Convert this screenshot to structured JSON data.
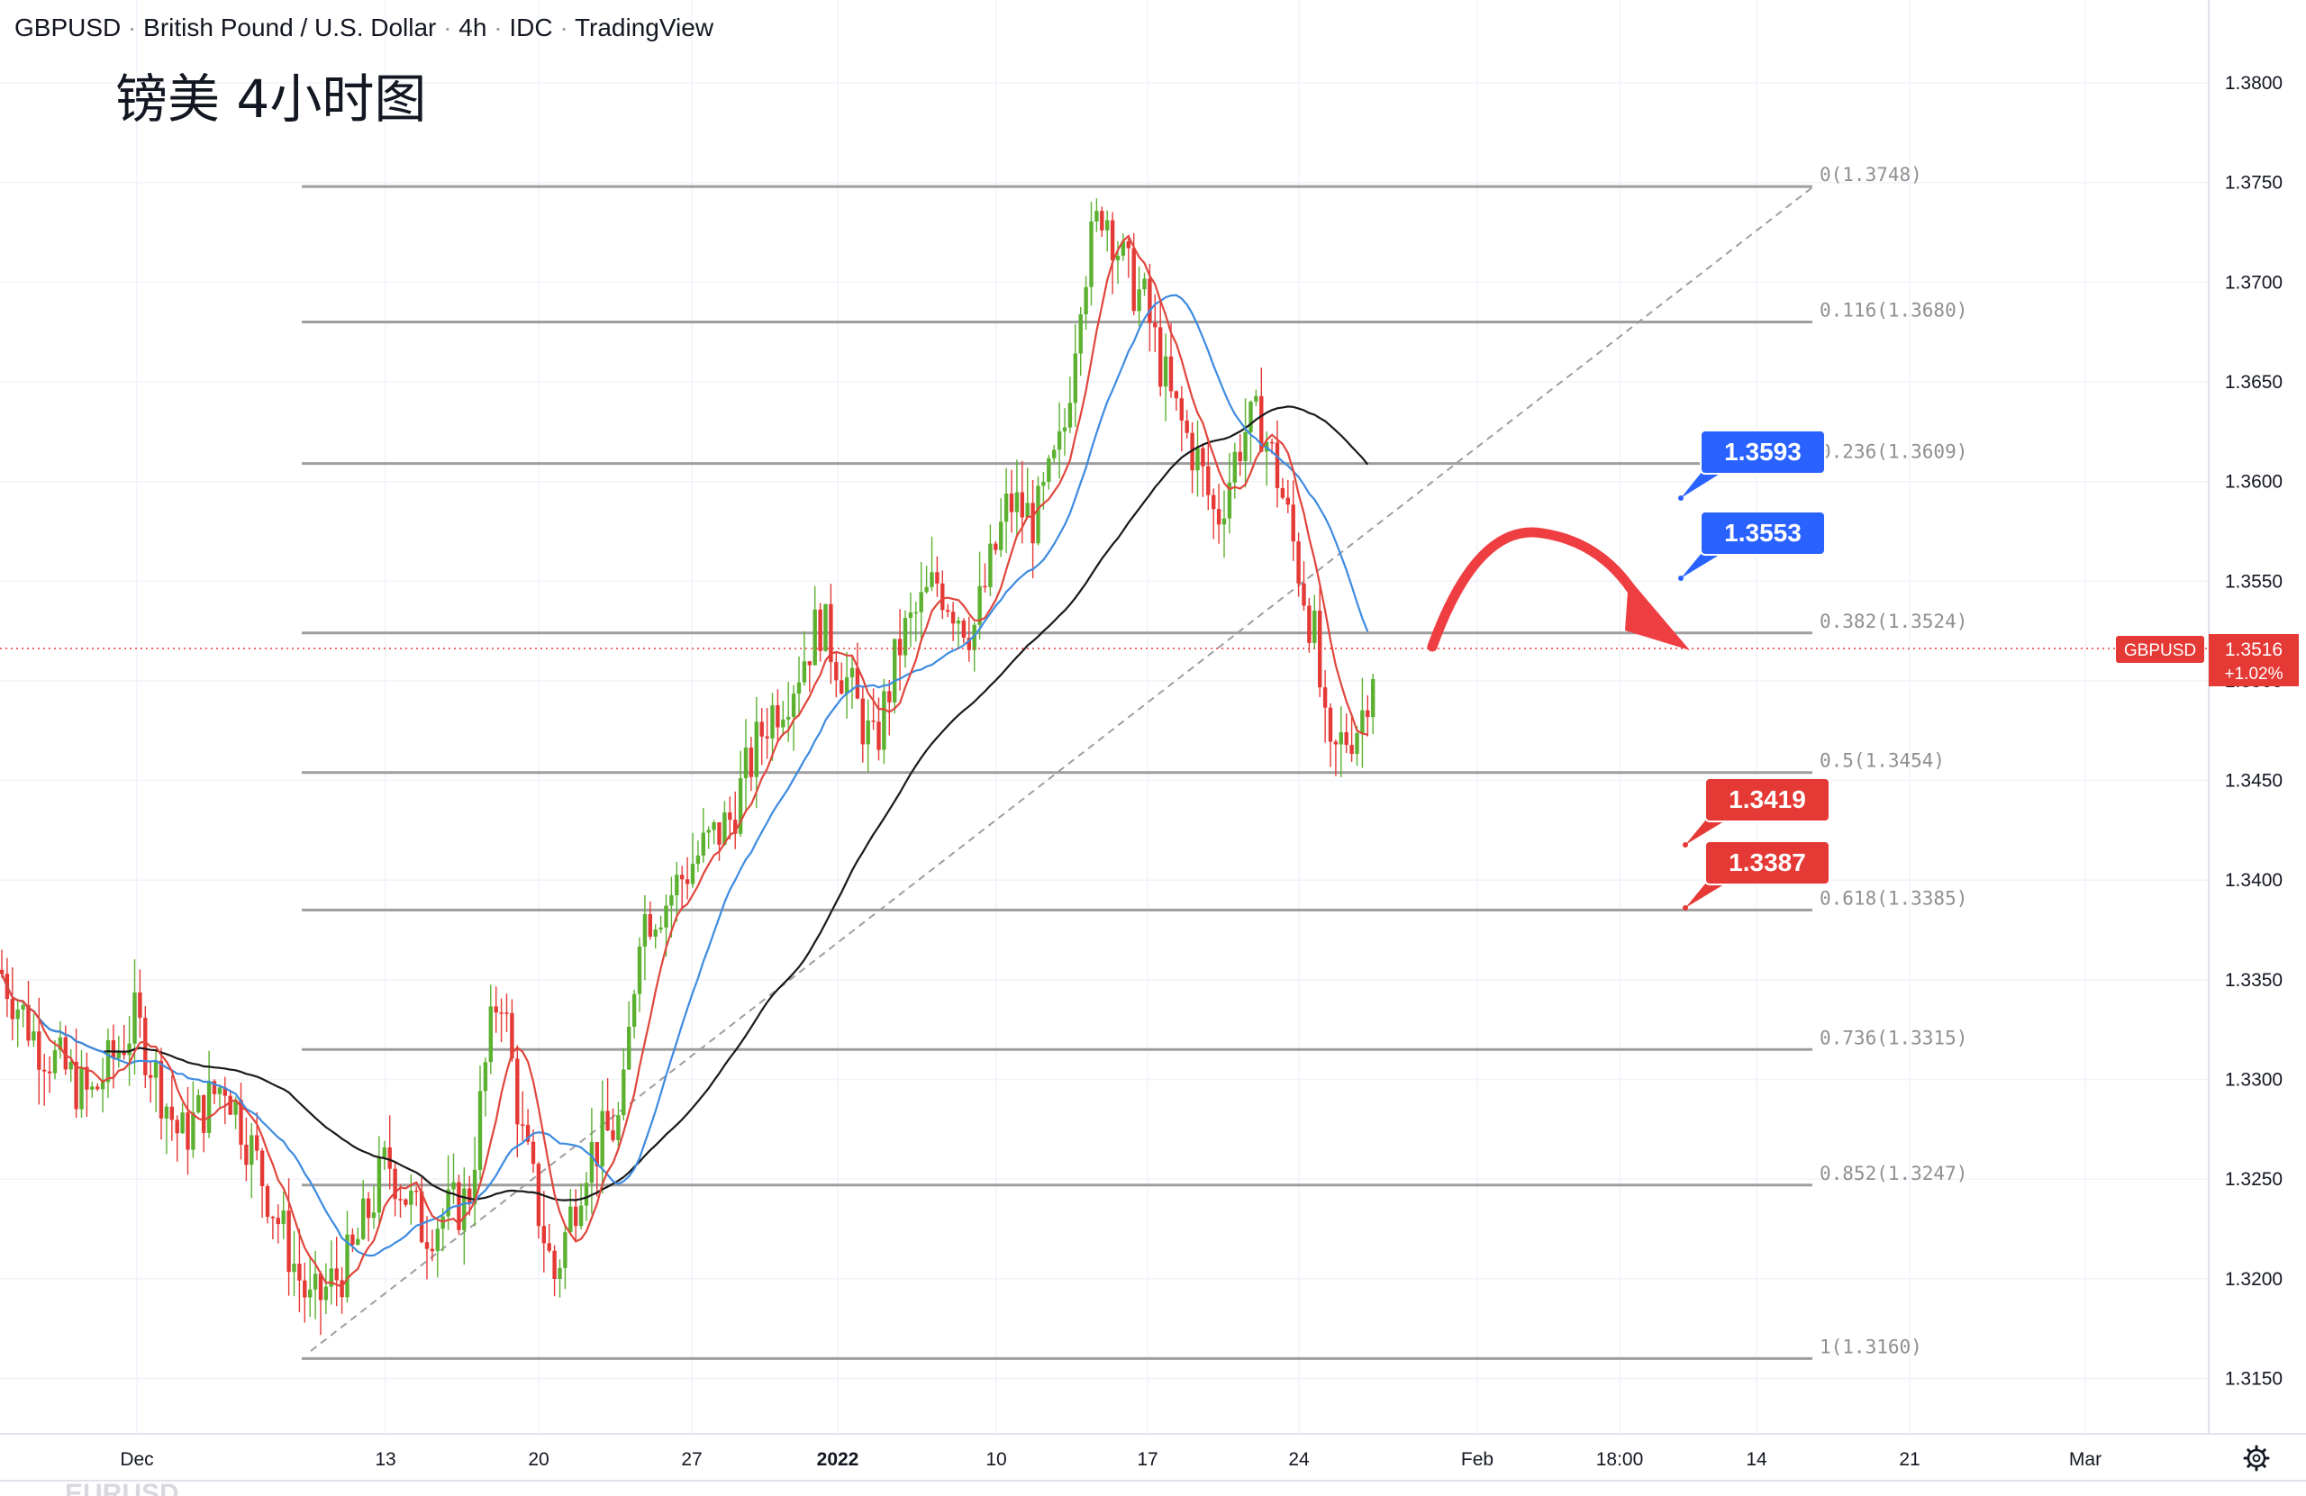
{
  "header": {
    "symbol": "GBPUSD",
    "name": "British Pound / U.S. Dollar",
    "interval": "4h",
    "source": "IDC",
    "platform": "TradingView"
  },
  "annotation_title": "镑美 4小时图",
  "price_scale": {
    "labels": [
      "1.3800",
      "1.3750",
      "1.3700",
      "1.3650",
      "1.3600",
      "1.3550",
      "1.3500",
      "1.3450",
      "1.3400",
      "1.3350",
      "1.3300",
      "1.3250",
      "1.3200",
      "1.3150"
    ]
  },
  "time_scale": {
    "labels": [
      "Dec",
      "13",
      "20",
      "27",
      "2022",
      "10",
      "17",
      "24",
      "Feb",
      "18:00",
      "14",
      "21",
      "Mar"
    ]
  },
  "current_price": {
    "symbol": "GBPUSD",
    "value": "1.3516",
    "change": "+1.02%"
  },
  "bottom_watermark": "EURUSD",
  "colors": {
    "up": "#26a69a",
    "candle_up": "#5cb130",
    "candle_down": "#e53935",
    "blue_ma": "#3d8be0",
    "red_ma": "#e0463c",
    "black_ma": "#1a1a1a",
    "fib": "#9e9e9e",
    "blue_label": "#2962ff",
    "red_label": "#e53935",
    "price_line": "#e53935"
  },
  "fib_levels": [
    {
      "ratio": "0",
      "price": "1.3748",
      "label": "0(1.3748)"
    },
    {
      "ratio": "0.116",
      "price": "1.3680",
      "label": "0.116(1.3680)"
    },
    {
      "ratio": "0.236",
      "price": "1.3609",
      "label": "0.236(1.3609)"
    },
    {
      "ratio": "0.382",
      "price": "1.3524",
      "label": "0.382(1.3524)"
    },
    {
      "ratio": "0.5",
      "price": "1.3454",
      "label": "0.5(1.3454)"
    },
    {
      "ratio": "0.618",
      "price": "1.3385",
      "label": "0.618(1.3385)"
    },
    {
      "ratio": "0.736",
      "price": "1.3315",
      "label": "0.736(1.3315)"
    },
    {
      "ratio": "0.852",
      "price": "1.3247",
      "label": "0.852(1.3247)"
    },
    {
      "ratio": "1",
      "price": "1.3160",
      "label": "1(1.3160)"
    }
  ],
  "price_callouts": [
    {
      "value": "1.3593",
      "kind": "resistance",
      "color": "#2962ff"
    },
    {
      "value": "1.3553",
      "kind": "resistance",
      "color": "#2962ff"
    },
    {
      "value": "1.3419",
      "kind": "support",
      "color": "#e53935"
    },
    {
      "value": "1.3387",
      "kind": "support",
      "color": "#e53935"
    }
  ],
  "chart_data": {
    "type": "candlestick",
    "y_range": [
      1.312,
      1.3845
    ],
    "x_ticks": [
      "Dec",
      "13",
      "20",
      "27",
      "2022",
      "10",
      "17",
      "24",
      "Feb",
      "18:00",
      "14",
      "21",
      "Mar"
    ],
    "ohlc_approx_path": [
      {
        "date": "Dec 6",
        "price": 1.326
      },
      {
        "date": "Dec 8",
        "price": 1.318
      },
      {
        "date": "Dec 10",
        "price": 1.324
      },
      {
        "date": "Dec 13",
        "price": 1.323
      },
      {
        "date": "Dec 16",
        "price": 1.333
      },
      {
        "date": "Dec 17",
        "price": 1.328
      },
      {
        "date": "Dec 20",
        "price": 1.32
      },
      {
        "date": "Dec 23",
        "price": 1.338
      },
      {
        "date": "Dec 27",
        "price": 1.343
      },
      {
        "date": "Dec 30",
        "price": 1.351
      },
      {
        "date": "Jan 3",
        "price": 1.348
      },
      {
        "date": "Jan 6",
        "price": 1.356
      },
      {
        "date": "Jan 10",
        "price": 1.358
      },
      {
        "date": "Jan 13",
        "price": 1.372
      },
      {
        "date": "Jan 14",
        "price": 1.374
      },
      {
        "date": "Jan 17",
        "price": 1.364
      },
      {
        "date": "Jan 19",
        "price": 1.362
      },
      {
        "date": "Jan 21",
        "price": 1.358
      },
      {
        "date": "Jan 24",
        "price": 1.346
      },
      {
        "date": "Jan 26",
        "price": 1.3516
      }
    ],
    "moving_averages": [
      {
        "color": "red",
        "period_hint": "short"
      },
      {
        "color": "blue",
        "period_hint": "medium"
      },
      {
        "color": "black",
        "period_hint": "long"
      }
    ],
    "fib_retracement": {
      "high": 1.3748,
      "low": 1.316
    },
    "last_price": 1.3516,
    "last_change": "+1.02%",
    "forecast_arrow": "down from ~1.3520 toward ~1.3505"
  }
}
